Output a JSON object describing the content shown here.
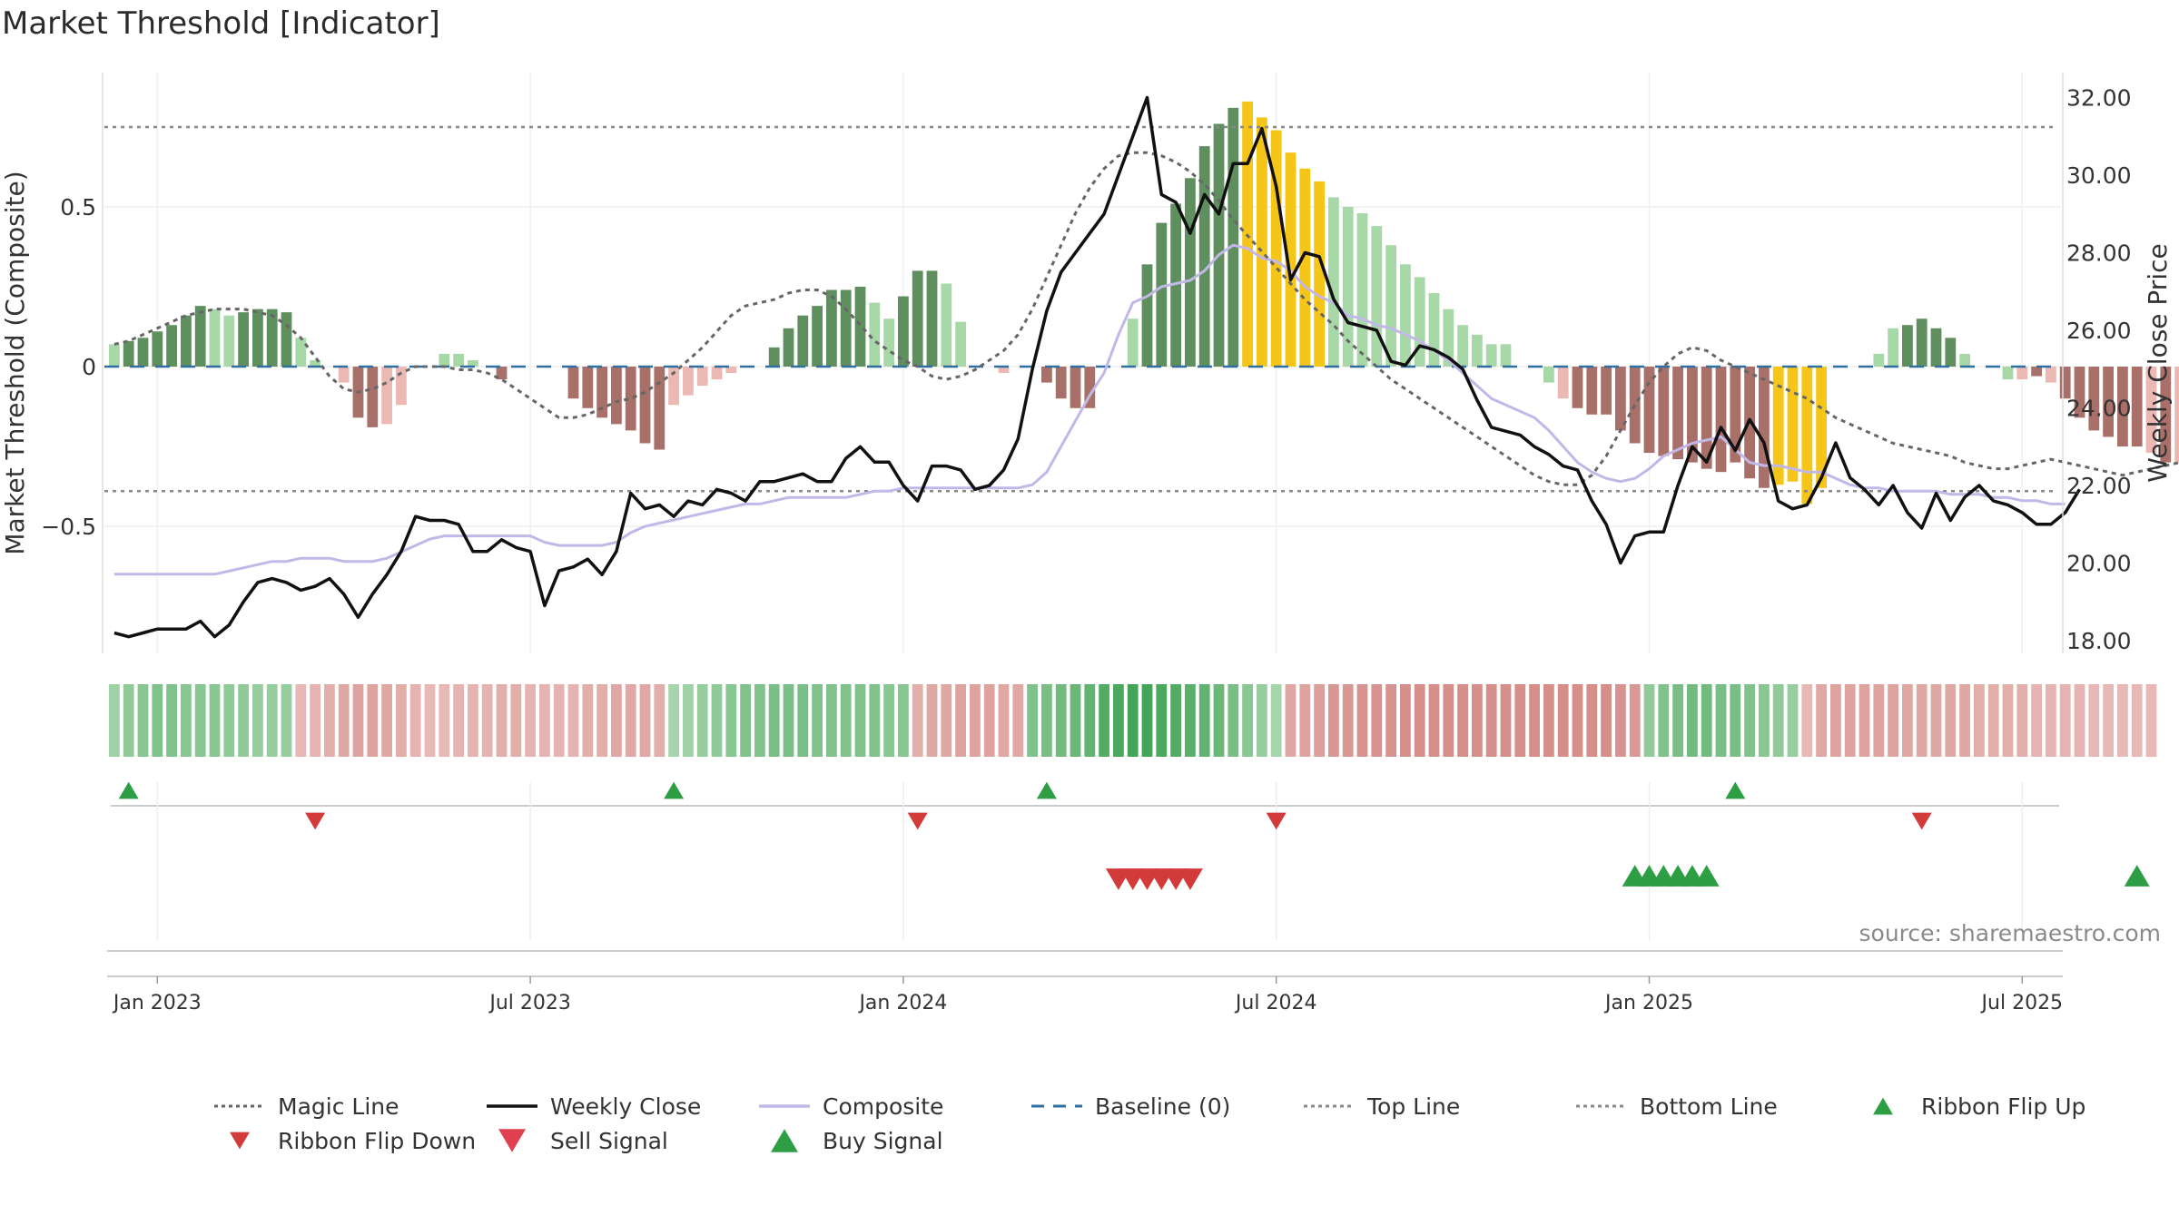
{
  "title": "Market Threshold [Indicator]",
  "source_note": "source: sharemaestro.com",
  "colors": {
    "bar_dark_green": "#5f8f5f",
    "bar_light_green": "#a8d8a8",
    "bar_dark_red": "#a87068",
    "bar_light_red": "#ecb8b4",
    "bar_gold": "#f5c518",
    "weekly_close": "#111111",
    "composite": "#c2b8e8",
    "magic_line": "#666666",
    "baseline": "#2f6f9f",
    "threshold_line": "#888888",
    "buy": "#2e9e44",
    "sell": "#d33a3a"
  },
  "chart_data": {
    "type": "bar",
    "title": "Market Threshold [Indicator]",
    "ylabel_left": "Market Threshold (Composite)",
    "ylabel_right": "Weekly Close Price",
    "left_ticks": [
      "−0.5",
      "0",
      "0.5"
    ],
    "left_tick_values": [
      -0.5,
      0,
      0.5
    ],
    "right_ticks": [
      "18.00",
      "20.00",
      "22.00",
      "24.00",
      "26.00",
      "28.00",
      "30.00",
      "32.00"
    ],
    "right_tick_values": [
      18,
      20,
      22,
      24,
      26,
      28,
      30,
      32
    ],
    "ylim_left": [
      -0.9,
      0.92
    ],
    "ylim_right": [
      17.6,
      32.8
    ],
    "x_ticks": [
      "Jan 2023",
      "Jul 2023",
      "Jan 2024",
      "Jul 2024",
      "Jan 2025",
      "Jul 2025"
    ],
    "x_tick_weeks": [
      3,
      29,
      55,
      81,
      107,
      133
    ],
    "top_line": 0.75,
    "bottom_line": -0.39,
    "baseline": 0,
    "weeks": 144,
    "composite_bars": [
      0.07,
      0.08,
      0.09,
      0.11,
      0.13,
      0.16,
      0.19,
      0.18,
      0.16,
      0.17,
      0.18,
      0.18,
      0.17,
      0.09,
      0.02,
      0.0,
      -0.05,
      -0.16,
      -0.19,
      -0.18,
      -0.12,
      0.0,
      0.0,
      0.04,
      0.04,
      0.02,
      0.0,
      -0.04,
      0.0,
      0.0,
      0.0,
      0.0,
      -0.1,
      -0.13,
      -0.16,
      -0.18,
      -0.2,
      -0.24,
      -0.26,
      -0.12,
      -0.09,
      -0.06,
      -0.04,
      -0.02,
      0.0,
      0.0,
      0.06,
      0.12,
      0.16,
      0.19,
      0.24,
      0.24,
      0.25,
      0.2,
      0.15,
      0.22,
      0.3,
      0.3,
      0.26,
      0.14,
      0.0,
      0.0,
      -0.02,
      0.0,
      0.0,
      -0.05,
      -0.1,
      -0.13,
      -0.13,
      0.0,
      0.0,
      0.15,
      0.32,
      0.45,
      0.51,
      0.59,
      0.69,
      0.76,
      0.81,
      0.83,
      0.78,
      0.74,
      0.67,
      0.62,
      0.58,
      0.53,
      0.5,
      0.48,
      0.44,
      0.38,
      0.32,
      0.28,
      0.23,
      0.18,
      0.13,
      0.1,
      0.07,
      0.07,
      0.0,
      0.0,
      -0.05,
      -0.1,
      -0.13,
      -0.15,
      -0.15,
      -0.2,
      -0.24,
      -0.27,
      -0.28,
      -0.29,
      -0.3,
      -0.32,
      -0.33,
      -0.3,
      -0.35,
      -0.38,
      -0.37,
      -0.36,
      -0.43,
      -0.38,
      0.0,
      0.0,
      0.0,
      0.04,
      0.12,
      0.13,
      0.15,
      0.12,
      0.09,
      0.04,
      0.0,
      0.0,
      -0.04,
      -0.04,
      -0.03,
      -0.05,
      -0.1,
      -0.16,
      -0.2,
      -0.22,
      -0.25,
      -0.25,
      -0.27,
      -0.3,
      -0.3
    ],
    "bar_colors": [
      "lg",
      "dg",
      "dg",
      "dg",
      "dg",
      "dg",
      "dg",
      "lg",
      "lg",
      "dg",
      "dg",
      "dg",
      "dg",
      "lg",
      "lg",
      "lg",
      "lr",
      "dr",
      "dr",
      "lr",
      "lr",
      "lg",
      "dg",
      "lg",
      "lg",
      "lg",
      "lg",
      "dr",
      "lr",
      "lr",
      "lr",
      "lr",
      "dr",
      "dr",
      "dr",
      "dr",
      "dr",
      "dr",
      "dr",
      "lr",
      "lr",
      "lr",
      "lr",
      "lr",
      "lg",
      "lg",
      "dg",
      "dg",
      "dg",
      "dg",
      "dg",
      "dg",
      "dg",
      "lg",
      "lg",
      "dg",
      "dg",
      "dg",
      "lg",
      "lg",
      "lr",
      "lr",
      "lr",
      "lr",
      "lr",
      "dr",
      "dr",
      "dr",
      "dr",
      "lr",
      "lg",
      "lg",
      "dg",
      "dg",
      "dg",
      "dg",
      "dg",
      "dg",
      "dg",
      "y",
      "y",
      "y",
      "y",
      "y",
      "y",
      "lg",
      "lg",
      "lg",
      "lg",
      "lg",
      "lg",
      "lg",
      "lg",
      "lg",
      "lg",
      "lg",
      "lg",
      "lg",
      "lg",
      "dg",
      "lg",
      "lr",
      "dr",
      "dr",
      "dr",
      "dr",
      "dr",
      "dr",
      "dr",
      "dr",
      "dr",
      "dr",
      "dr",
      "dr",
      "dr",
      "dr",
      "y",
      "y",
      "y",
      "y",
      "y",
      "y",
      "lg",
      "lg",
      "lg",
      "dg",
      "dg",
      "dg",
      "dg",
      "lg",
      "lg",
      "lg",
      "lg",
      "lr",
      "dr",
      "lr",
      "dr",
      "dr",
      "dr",
      "dr",
      "dr",
      "dr",
      "lr",
      "dr",
      "lr",
      "dr",
      "dr",
      "y"
    ],
    "weekly_close": [
      18.2,
      18.1,
      18.2,
      18.3,
      18.3,
      18.3,
      18.5,
      18.1,
      18.4,
      19.0,
      19.5,
      19.6,
      19.5,
      19.3,
      19.4,
      19.6,
      19.2,
      18.6,
      19.2,
      19.7,
      20.3,
      21.2,
      21.1,
      21.1,
      21.0,
      20.3,
      20.3,
      20.6,
      20.4,
      20.3,
      18.9,
      19.8,
      19.9,
      20.1,
      19.7,
      20.3,
      21.8,
      21.4,
      21.5,
      21.2,
      21.6,
      21.5,
      21.9,
      21.8,
      21.6,
      22.1,
      22.1,
      22.2,
      22.3,
      22.1,
      22.1,
      22.7,
      23.0,
      22.6,
      22.6,
      22.0,
      21.6,
      22.5,
      22.5,
      22.4,
      21.9,
      22.0,
      22.4,
      23.2,
      25.0,
      26.5,
      27.5,
      28.0,
      28.5,
      29.0,
      30.0,
      31.0,
      32.0,
      29.5,
      29.3,
      28.5,
      29.5,
      29.0,
      30.3,
      30.3,
      31.2,
      29.7,
      27.3,
      28.0,
      27.9,
      26.8,
      26.2,
      26.1,
      26.0,
      25.2,
      25.1,
      25.6,
      25.5,
      25.3,
      25.0,
      24.2,
      23.5,
      23.4,
      23.3,
      23.0,
      22.8,
      22.5,
      22.4,
      21.6,
      21.0,
      20.0,
      20.7,
      20.8,
      20.8,
      22.0,
      23.0,
      22.6,
      23.5,
      22.9,
      23.7,
      23.1,
      21.6,
      21.4,
      21.5,
      22.2,
      23.1,
      22.2,
      21.9,
      21.5,
      22.0,
      21.3,
      20.9,
      21.8,
      21.1,
      21.7,
      22.0,
      21.6,
      21.5,
      21.3,
      21.0,
      21.0,
      21.3,
      21.9
    ],
    "composite_line": [
      -0.65,
      -0.65,
      -0.65,
      -0.65,
      -0.65,
      -0.65,
      -0.65,
      -0.65,
      -0.64,
      -0.63,
      -0.62,
      -0.61,
      -0.61,
      -0.6,
      -0.6,
      -0.6,
      -0.61,
      -0.61,
      -0.61,
      -0.6,
      -0.58,
      -0.56,
      -0.54,
      -0.53,
      -0.53,
      -0.53,
      -0.53,
      -0.53,
      -0.53,
      -0.53,
      -0.55,
      -0.56,
      -0.56,
      -0.56,
      -0.56,
      -0.55,
      -0.52,
      -0.5,
      -0.49,
      -0.48,
      -0.47,
      -0.46,
      -0.45,
      -0.44,
      -0.43,
      -0.43,
      -0.42,
      -0.41,
      -0.41,
      -0.41,
      -0.41,
      -0.41,
      -0.4,
      -0.39,
      -0.39,
      -0.38,
      -0.38,
      -0.38,
      -0.38,
      -0.38,
      -0.38,
      -0.38,
      -0.38,
      -0.38,
      -0.37,
      -0.33,
      -0.25,
      -0.17,
      -0.09,
      -0.02,
      0.1,
      0.2,
      0.22,
      0.25,
      0.26,
      0.27,
      0.3,
      0.35,
      0.38,
      0.37,
      0.34,
      0.33,
      0.3,
      0.25,
      0.22,
      0.2,
      0.16,
      0.15,
      0.13,
      0.12,
      0.1,
      0.08,
      0.05,
      0.02,
      -0.02,
      -0.06,
      -0.1,
      -0.12,
      -0.14,
      -0.16,
      -0.2,
      -0.25,
      -0.3,
      -0.33,
      -0.35,
      -0.36,
      -0.35,
      -0.32,
      -0.28,
      -0.26,
      -0.24,
      -0.23,
      -0.22,
      -0.26,
      -0.3,
      -0.31,
      -0.31,
      -0.32,
      -0.33,
      -0.33,
      -0.35,
      -0.37,
      -0.38,
      -0.38,
      -0.39,
      -0.39,
      -0.39,
      -0.39,
      -0.4,
      -0.4,
      -0.4,
      -0.41,
      -0.41,
      -0.42,
      -0.42,
      -0.43,
      -0.43
    ],
    "magic_line": [
      0.07,
      0.08,
      0.1,
      0.12,
      0.14,
      0.16,
      0.17,
      0.18,
      0.18,
      0.18,
      0.17,
      0.16,
      0.13,
      0.09,
      0.03,
      -0.03,
      -0.07,
      -0.08,
      -0.07,
      -0.05,
      -0.02,
      0.0,
      0.0,
      0.0,
      -0.01,
      -0.01,
      -0.02,
      -0.04,
      -0.07,
      -0.1,
      -0.13,
      -0.16,
      -0.16,
      -0.15,
      -0.13,
      -0.11,
      -0.1,
      -0.08,
      -0.05,
      -0.02,
      0.02,
      0.06,
      0.11,
      0.16,
      0.19,
      0.2,
      0.21,
      0.23,
      0.24,
      0.24,
      0.22,
      0.18,
      0.13,
      0.08,
      0.05,
      0.02,
      0.0,
      -0.03,
      -0.04,
      -0.03,
      -0.01,
      0.02,
      0.05,
      0.1,
      0.18,
      0.28,
      0.38,
      0.48,
      0.56,
      0.62,
      0.66,
      0.67,
      0.67,
      0.66,
      0.64,
      0.61,
      0.57,
      0.52,
      0.46,
      0.41,
      0.36,
      0.31,
      0.26,
      0.21,
      0.17,
      0.13,
      0.08,
      0.04,
      0.0,
      -0.04,
      -0.07,
      -0.1,
      -0.13,
      -0.16,
      -0.19,
      -0.22,
      -0.25,
      -0.28,
      -0.31,
      -0.34,
      -0.36,
      -0.37,
      -0.37,
      -0.34,
      -0.28,
      -0.2,
      -0.12,
      -0.05,
      0.0,
      0.04,
      0.06,
      0.05,
      0.02,
      0.0,
      -0.02,
      -0.04,
      -0.06,
      -0.08,
      -0.1,
      -0.13,
      -0.16,
      -0.18,
      -0.2,
      -0.22,
      -0.24,
      -0.25,
      -0.26,
      -0.27,
      -0.28,
      -0.3,
      -0.31,
      -0.32,
      -0.32,
      -0.31,
      -0.3,
      -0.29,
      -0.3,
      -0.31,
      -0.32,
      -0.33,
      -0.34,
      -0.33,
      -0.32,
      -0.31,
      -0.3
    ],
    "ribbon_strength": [
      0.35,
      0.45,
      0.5,
      0.55,
      0.55,
      0.5,
      0.5,
      0.5,
      0.45,
      0.45,
      0.4,
      0.4,
      0.4,
      -0.3,
      -0.35,
      -0.4,
      -0.45,
      -0.5,
      -0.5,
      -0.45,
      -0.4,
      -0.35,
      -0.3,
      -0.3,
      -0.35,
      -0.35,
      -0.35,
      -0.4,
      -0.4,
      -0.35,
      -0.35,
      -0.35,
      -0.35,
      -0.4,
      -0.4,
      -0.45,
      -0.45,
      -0.45,
      -0.4,
      0.3,
      0.35,
      0.4,
      0.45,
      0.5,
      0.55,
      0.55,
      0.6,
      0.6,
      0.6,
      0.55,
      0.55,
      0.55,
      0.55,
      0.55,
      0.5,
      0.5,
      -0.4,
      -0.45,
      -0.45,
      -0.5,
      -0.5,
      -0.5,
      -0.45,
      -0.45,
      0.55,
      0.6,
      0.65,
      0.7,
      0.75,
      0.85,
      0.9,
      0.95,
      0.95,
      0.9,
      0.85,
      0.8,
      0.75,
      0.7,
      0.6,
      0.5,
      0.4,
      0.3,
      -0.45,
      -0.5,
      -0.55,
      -0.6,
      -0.6,
      -0.65,
      -0.65,
      -0.65,
      -0.7,
      -0.7,
      -0.7,
      -0.7,
      -0.7,
      -0.7,
      -0.7,
      -0.7,
      -0.7,
      -0.7,
      -0.7,
      -0.7,
      -0.7,
      -0.7,
      -0.7,
      -0.65,
      -0.6,
      0.45,
      0.55,
      0.6,
      0.65,
      0.65,
      0.6,
      0.6,
      0.55,
      0.5,
      0.45,
      0.4,
      -0.3,
      -0.45,
      -0.5,
      -0.5,
      -0.5,
      -0.5,
      -0.5,
      -0.45,
      -0.45,
      -0.45,
      -0.45,
      -0.45,
      -0.4,
      -0.4,
      -0.4,
      -0.4,
      -0.35,
      -0.35,
      -0.35,
      -0.35,
      -0.3,
      -0.3,
      -0.3,
      -0.3,
      -0.3
    ],
    "ribbon_flip_up_weeks": [
      1,
      39,
      65,
      113
    ],
    "ribbon_flip_down_weeks": [
      14,
      56,
      81,
      126
    ],
    "sell_signal_weeks": [
      70,
      71,
      72,
      73,
      74,
      75
    ],
    "buy_signal_weeks": [
      106,
      107,
      108,
      109,
      110,
      111,
      141
    ],
    "legend": [
      {
        "label": "Magic Line",
        "kind": "dotted",
        "color": "#666666"
      },
      {
        "label": "Weekly Close",
        "kind": "solid",
        "color": "#111111"
      },
      {
        "label": "Composite",
        "kind": "solid",
        "color": "#c2b8e8"
      },
      {
        "label": "Baseline (0)",
        "kind": "dashed",
        "color": "#2f6f9f"
      },
      {
        "label": "Top Line",
        "kind": "dotted",
        "color": "#888888"
      },
      {
        "label": "Bottom Line",
        "kind": "dotted",
        "color": "#888888"
      },
      {
        "label": "Ribbon Flip Up",
        "kind": "tri-up",
        "color": "#2e9e44"
      },
      {
        "label": "Ribbon Flip Down",
        "kind": "tri-down",
        "color": "#d33a3a"
      },
      {
        "label": "Sell Signal",
        "kind": "tri-down-big",
        "color": "#e04050"
      },
      {
        "label": "Buy Signal",
        "kind": "tri-up-big",
        "color": "#2e9e44"
      }
    ]
  }
}
